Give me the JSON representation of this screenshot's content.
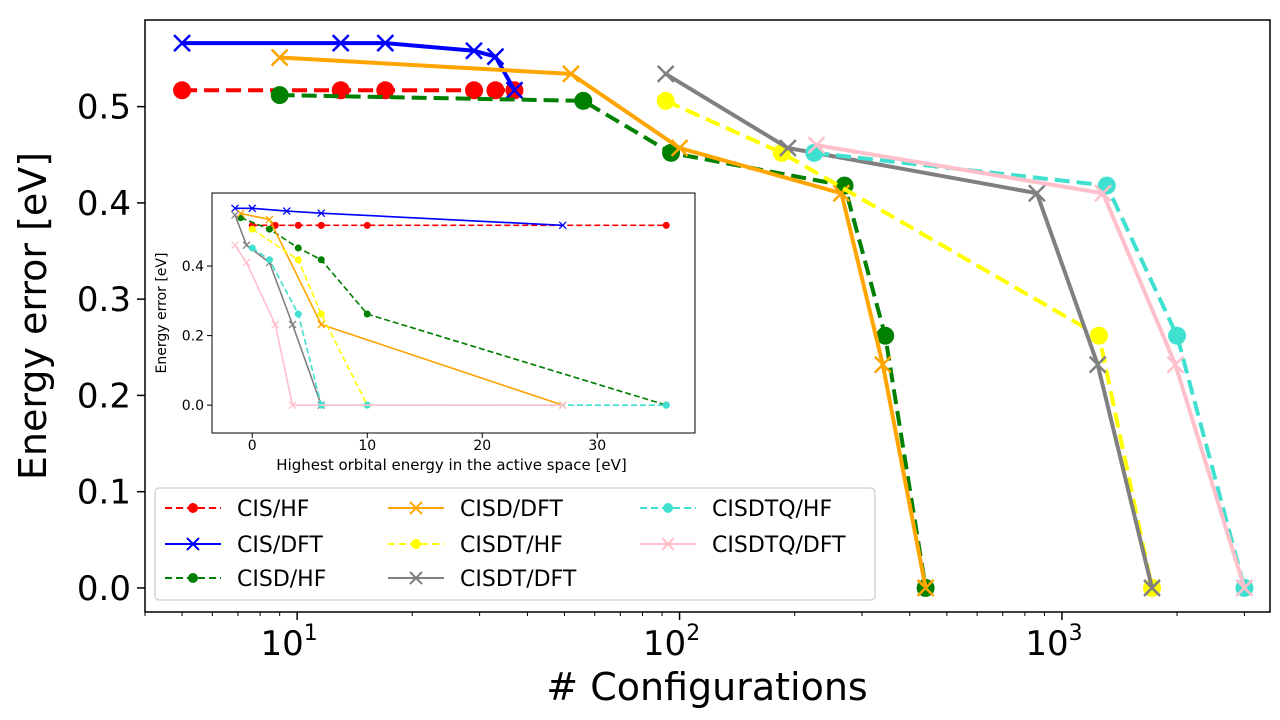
{
  "chart_data": [
    {
      "type": "line",
      "xscale": "log",
      "xlabel": "# Configurations",
      "ylabel": "Energy error [eV]",
      "xlim": [
        4,
        3500
      ],
      "ylim": [
        -0.025,
        0.59
      ],
      "xticks": [
        {
          "value": 10,
          "base": "10",
          "exp": "1"
        },
        {
          "value": 100,
          "base": "10",
          "exp": "2"
        },
        {
          "value": 1000,
          "base": "10",
          "exp": "3"
        }
      ],
      "yticks": [
        "0.0",
        "0.1",
        "0.2",
        "0.3",
        "0.4",
        "0.5"
      ],
      "legend_position": "lower-left",
      "series": [
        {
          "name": "CIS/HF",
          "color": "#ff0000",
          "dash": "dashed",
          "marker": "circle",
          "x": [
            5,
            13,
            17,
            29,
            33,
            37
          ],
          "y": [
            0.517,
            0.517,
            0.517,
            0.517,
            0.517,
            0.517
          ]
        },
        {
          "name": "CIS/DFT",
          "color": "#0000ff",
          "dash": "solid",
          "marker": "x",
          "x": [
            5,
            13,
            17,
            29,
            33,
            37
          ],
          "y": [
            0.566,
            0.566,
            0.566,
            0.558,
            0.552,
            0.517
          ]
        },
        {
          "name": "CISD/HF",
          "color": "#008000",
          "dash": "dashed",
          "marker": "circle",
          "x": [
            9,
            56,
            95,
            270,
            345,
            440
          ],
          "y": [
            0.512,
            0.506,
            0.452,
            0.418,
            0.262,
            0.0
          ]
        },
        {
          "name": "CISD/DFT",
          "color": "#ffa500",
          "dash": "solid",
          "marker": "x",
          "x": [
            9,
            52,
            100,
            265,
            340,
            440
          ],
          "y": [
            0.551,
            0.534,
            0.457,
            0.41,
            0.232,
            0.0
          ]
        },
        {
          "name": "CISDT/HF",
          "color": "#ffff00",
          "dash": "dashed",
          "marker": "circle",
          "x": [
            92,
            185,
            1250,
            1720
          ],
          "y": [
            0.506,
            0.452,
            0.262,
            0.0
          ]
        },
        {
          "name": "CISDT/DFT",
          "color": "#808080",
          "dash": "solid",
          "marker": "x",
          "x": [
            92,
            192,
            860,
            1240,
            1720
          ],
          "y": [
            0.534,
            0.457,
            0.41,
            0.232,
            0.0
          ]
        },
        {
          "name": "CISDTQ/HF",
          "color": "#40e0d0",
          "dash": "dashed",
          "marker": "circle",
          "x": [
            225,
            1310,
            2000,
            3000
          ],
          "y": [
            0.452,
            0.418,
            0.262,
            0.0
          ]
        },
        {
          "name": "CISDTQ/DFT",
          "color": "#ffc0cb",
          "dash": "solid",
          "marker": "x",
          "x": [
            228,
            1280,
            1980,
            3000
          ],
          "y": [
            0.46,
            0.41,
            0.232,
            0.0
          ]
        }
      ]
    },
    {
      "type": "line",
      "xlabel": "Highest orbital energy in the active space [eV]",
      "ylabel": "Energy error [eV]",
      "xlim": [
        -3.5,
        38.5
      ],
      "ylim": [
        -0.08,
        0.61
      ],
      "xticks": [
        "0",
        "10",
        "20",
        "30"
      ],
      "yticks": [
        "0.0",
        "0.2",
        "0.4"
      ],
      "series": [
        {
          "name": "CIS/HF",
          "color": "#ff0000",
          "dash": "dashed",
          "marker": "circle",
          "x": [
            0,
            2,
            4,
            6,
            10,
            36
          ],
          "y": [
            0.517,
            0.517,
            0.517,
            0.517,
            0.517,
            0.517
          ]
        },
        {
          "name": "CIS/DFT",
          "color": "#0000ff",
          "dash": "solid",
          "marker": "x",
          "x": [
            -1.5,
            0,
            3,
            6,
            27
          ],
          "y": [
            0.566,
            0.566,
            0.558,
            0.552,
            0.517
          ]
        },
        {
          "name": "CISD/HF",
          "color": "#008000",
          "dash": "dashed",
          "marker": "circle",
          "x": [
            -1,
            1.5,
            4,
            6,
            10,
            36
          ],
          "y": [
            0.539,
            0.506,
            0.452,
            0.418,
            0.262,
            0.0
          ]
        },
        {
          "name": "CISD/DFT",
          "color": "#ffa500",
          "dash": "solid",
          "marker": "x",
          "x": [
            -1,
            1.5,
            6,
            27
          ],
          "y": [
            0.551,
            0.534,
            0.232,
            0.0
          ]
        },
        {
          "name": "CISDT/HF",
          "color": "#ffff00",
          "dash": "dashed",
          "marker": "circle",
          "x": [
            0,
            4,
            6,
            10
          ],
          "y": [
            0.506,
            0.418,
            0.262,
            0.0
          ]
        },
        {
          "name": "CISDT/DFT",
          "color": "#808080",
          "dash": "solid",
          "marker": "x",
          "x": [
            -1.5,
            -0.5,
            1.5,
            3.5,
            6
          ],
          "y": [
            0.547,
            0.46,
            0.41,
            0.232,
            0.0
          ]
        },
        {
          "name": "CISDTQ/HF",
          "color": "#40e0d0",
          "dash": "dashed",
          "marker": "circle",
          "x": [
            0,
            1.5,
            4,
            6,
            10,
            36
          ],
          "y": [
            0.452,
            0.418,
            0.262,
            0.0,
            0.0,
            0.0
          ]
        },
        {
          "name": "CISDTQ/DFT",
          "color": "#ffc0cb",
          "dash": "solid",
          "marker": "x",
          "x": [
            -1.5,
            -0.5,
            2,
            3.5,
            27
          ],
          "y": [
            0.46,
            0.41,
            0.232,
            0.0,
            0.0
          ]
        }
      ]
    }
  ]
}
